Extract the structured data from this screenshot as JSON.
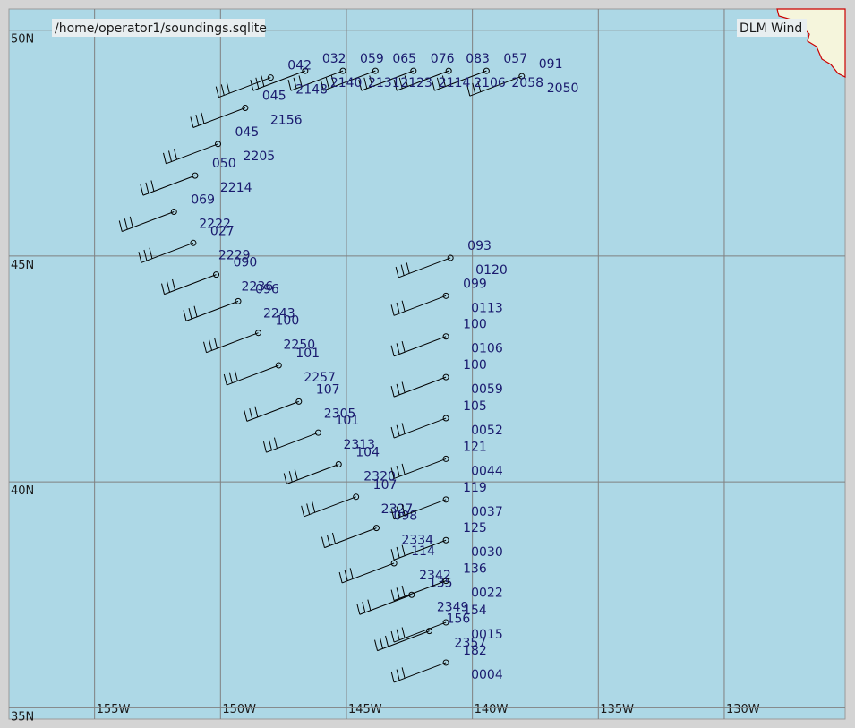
{
  "map": {
    "file": "/home/operator1/soundings.sqlite",
    "title": "DLM Wind",
    "lon_range": [
      -158.4,
      -125.2
    ],
    "lat_range": [
      34.75,
      50.47
    ],
    "lon_lines": [
      {
        "value": -155,
        "label": "155W"
      },
      {
        "value": -150,
        "label": "150W"
      },
      {
        "value": -145,
        "label": "145W"
      },
      {
        "value": -140,
        "label": "140W"
      },
      {
        "value": -135,
        "label": "135W"
      },
      {
        "value": -130,
        "label": "130W"
      }
    ],
    "lat_lines": [
      {
        "value": 50,
        "label": "50N"
      },
      {
        "value": 45,
        "label": "45N"
      },
      {
        "value": 40,
        "label": "40N"
      },
      {
        "value": 35,
        "label": "35N"
      }
    ],
    "stations": [
      {
        "lon": -138.04,
        "lat": 48.98,
        "label": "091",
        "time": "2050"
      },
      {
        "lon": -139.44,
        "lat": 49.1,
        "label": "057",
        "time": "2058"
      },
      {
        "lon": -140.94,
        "lat": 49.1,
        "label": "083",
        "time": "2106"
      },
      {
        "lon": -142.34,
        "lat": 49.1,
        "label": "076",
        "time": "2114"
      },
      {
        "lon": -143.85,
        "lat": 49.1,
        "label": "065",
        "time": "2123"
      },
      {
        "lon": -145.14,
        "lat": 49.1,
        "label": "059",
        "time": "2131"
      },
      {
        "lon": -146.64,
        "lat": 49.1,
        "label": "032",
        "time": "2140"
      },
      {
        "lon": -148.01,
        "lat": 48.95,
        "label": "042",
        "time": "2148"
      },
      {
        "lon": -149.02,
        "lat": 48.28,
        "label": "045",
        "time": "2156"
      },
      {
        "lon": -150.1,
        "lat": 47.48,
        "label": "045",
        "time": "2205"
      },
      {
        "lon": -151.01,
        "lat": 46.78,
        "label": "050",
        "time": "2214"
      },
      {
        "lon": -151.85,
        "lat": 45.98,
        "label": "069",
        "time": "2222"
      },
      {
        "lon": -151.08,
        "lat": 45.29,
        "label": "027",
        "time": "2229"
      },
      {
        "lon": -150.17,
        "lat": 44.59,
        "label": "090",
        "time": "2236"
      },
      {
        "lon": -149.3,
        "lat": 44.0,
        "label": "096",
        "time": "2243"
      },
      {
        "lon": -148.5,
        "lat": 43.3,
        "label": "100",
        "time": "2250"
      },
      {
        "lon": -147.69,
        "lat": 42.58,
        "label": "101",
        "time": "2257"
      },
      {
        "lon": -146.89,
        "lat": 41.78,
        "label": "107",
        "time": "2305"
      },
      {
        "lon": -146.12,
        "lat": 41.09,
        "label": "101",
        "time": "2313"
      },
      {
        "lon": -145.31,
        "lat": 40.39,
        "label": "104",
        "time": "2320"
      },
      {
        "lon": -144.62,
        "lat": 39.67,
        "label": "107",
        "time": "2327"
      },
      {
        "lon": -143.81,
        "lat": 38.98,
        "label": "098",
        "time": "2334"
      },
      {
        "lon": -143.11,
        "lat": 38.2,
        "label": "114",
        "time": "2342"
      },
      {
        "lon": -142.41,
        "lat": 37.5,
        "label": "135",
        "time": "2349"
      },
      {
        "lon": -141.71,
        "lat": 36.7,
        "label": "156",
        "time": "2357"
      },
      {
        "lon": -141.05,
        "lat": 36.0,
        "label": "182",
        "time": "0004"
      },
      {
        "lon": -141.05,
        "lat": 36.89,
        "label": "154",
        "time": "0015"
      },
      {
        "lon": -141.05,
        "lat": 37.81,
        "label": "136",
        "time": "0022"
      },
      {
        "lon": -141.05,
        "lat": 38.71,
        "label": "125",
        "time": "0030"
      },
      {
        "lon": -141.05,
        "lat": 39.61,
        "label": "119",
        "time": "0037"
      },
      {
        "lon": -141.05,
        "lat": 40.51,
        "label": "121",
        "time": "0044"
      },
      {
        "lon": -141.05,
        "lat": 41.41,
        "label": "105",
        "time": "0052"
      },
      {
        "lon": -141.05,
        "lat": 42.32,
        "label": "100",
        "time": "0059"
      },
      {
        "lon": -141.05,
        "lat": 43.22,
        "label": "100",
        "time": "0106"
      },
      {
        "lon": -141.05,
        "lat": 44.12,
        "label": "099",
        "time": "0113"
      },
      {
        "lon": -140.87,
        "lat": 44.96,
        "label": "093",
        "time": "0120"
      }
    ]
  }
}
